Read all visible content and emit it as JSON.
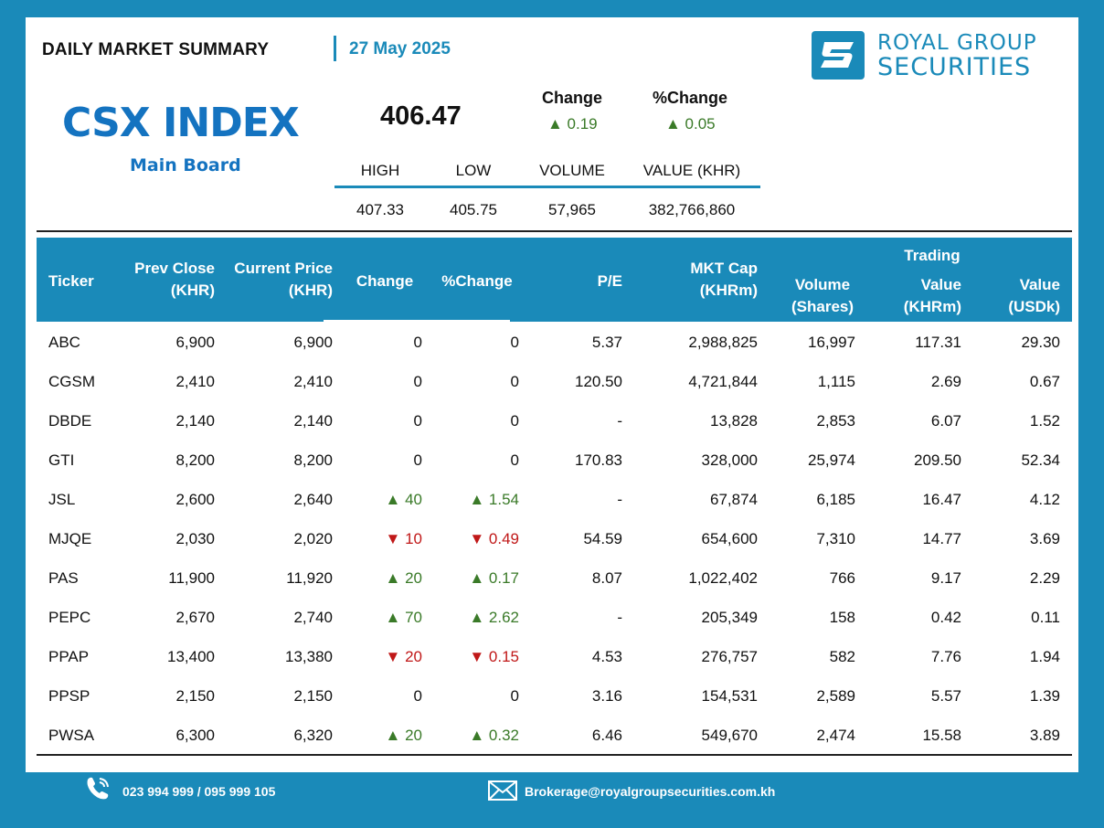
{
  "header": {
    "title": "DAILY MARKET SUMMARY",
    "date": "27 May 2025",
    "logo_line1": "ROYAL GROUP",
    "logo_line2": "SECURITIES",
    "logo_icon": "royal-group-logo-icon"
  },
  "index": {
    "name": "CSX INDEX",
    "board": "Main Board",
    "value": "406.47",
    "change_label": "Change",
    "pct_change_label": "%Change",
    "change": "▲ 0.19",
    "pct_change": "▲ 0.05"
  },
  "stats": {
    "headers": [
      "HIGH",
      "LOW",
      "VOLUME",
      "VALUE (KHR)"
    ],
    "values": [
      "407.33",
      "405.75",
      "57,965",
      "382,766,860"
    ]
  },
  "table": {
    "headers": {
      "ticker": "Ticker",
      "prev_close_1": "Prev Close",
      "prev_close_2": "(KHR)",
      "current_price_1": "Current Price",
      "current_price_2": "(KHR)",
      "change": "Change",
      "pct_change": "%Change",
      "pe": "P/E",
      "mkt_cap_1": "MKT Cap",
      "mkt_cap_2": "(KHRm)",
      "volume_1": "Volume",
      "volume_2": "(Shares)",
      "trading": "Trading",
      "value_khr_1": "Value",
      "value_khr_2": "(KHRm)",
      "value_usd_1": "Value",
      "value_usd_2": "(USDk)"
    },
    "rows": [
      {
        "ticker": "ABC",
        "prev": "6,900",
        "cur": "6,900",
        "chg": "0",
        "pct": "0",
        "dir": "flat",
        "pe": "5.37",
        "cap": "2,988,825",
        "vol": "16,997",
        "vkhr": "117.31",
        "vusd": "29.30"
      },
      {
        "ticker": "CGSM",
        "prev": "2,410",
        "cur": "2,410",
        "chg": "0",
        "pct": "0",
        "dir": "flat",
        "pe": "120.50",
        "cap": "4,721,844",
        "vol": "1,115",
        "vkhr": "2.69",
        "vusd": "0.67"
      },
      {
        "ticker": "DBDE",
        "prev": "2,140",
        "cur": "2,140",
        "chg": "0",
        "pct": "0",
        "dir": "flat",
        "pe": "-",
        "cap": "13,828",
        "vol": "2,853",
        "vkhr": "6.07",
        "vusd": "1.52"
      },
      {
        "ticker": "GTI",
        "prev": "8,200",
        "cur": "8,200",
        "chg": "0",
        "pct": "0",
        "dir": "flat",
        "pe": "170.83",
        "cap": "328,000",
        "vol": "25,974",
        "vkhr": "209.50",
        "vusd": "52.34"
      },
      {
        "ticker": "JSL",
        "prev": "2,600",
        "cur": "2,640",
        "chg": "▲ 40",
        "pct": "▲ 1.54",
        "dir": "up",
        "pe": "-",
        "cap": "67,874",
        "vol": "6,185",
        "vkhr": "16.47",
        "vusd": "4.12"
      },
      {
        "ticker": "MJQE",
        "prev": "2,030",
        "cur": "2,020",
        "chg": "▼ 10",
        "pct": "▼ 0.49",
        "dir": "down",
        "pe": "54.59",
        "cap": "654,600",
        "vol": "7,310",
        "vkhr": "14.77",
        "vusd": "3.69"
      },
      {
        "ticker": "PAS",
        "prev": "11,900",
        "cur": "11,920",
        "chg": "▲ 20",
        "pct": "▲ 0.17",
        "dir": "up",
        "pe": "8.07",
        "cap": "1,022,402",
        "vol": "766",
        "vkhr": "9.17",
        "vusd": "2.29"
      },
      {
        "ticker": "PEPC",
        "prev": "2,670",
        "cur": "2,740",
        "chg": "▲ 70",
        "pct": "▲ 2.62",
        "dir": "up",
        "pe": "-",
        "cap": "205,349",
        "vol": "158",
        "vkhr": "0.42",
        "vusd": "0.11"
      },
      {
        "ticker": "PPAP",
        "prev": "13,400",
        "cur": "13,380",
        "chg": "▼ 20",
        "pct": "▼ 0.15",
        "dir": "down",
        "pe": "4.53",
        "cap": "276,757",
        "vol": "582",
        "vkhr": "7.76",
        "vusd": "1.94"
      },
      {
        "ticker": "PPSP",
        "prev": "2,150",
        "cur": "2,150",
        "chg": "0",
        "pct": "0",
        "dir": "flat",
        "pe": "3.16",
        "cap": "154,531",
        "vol": "2,589",
        "vkhr": "5.57",
        "vusd": "1.39"
      },
      {
        "ticker": "PWSA",
        "prev": "6,300",
        "cur": "6,320",
        "chg": "▲ 20",
        "pct": "▲ 0.32",
        "dir": "up",
        "pe": "6.46",
        "cap": "549,670",
        "vol": "2,474",
        "vkhr": "15.58",
        "vusd": "3.89"
      }
    ]
  },
  "footer": {
    "phone": "023 994 999 / 095 999 105",
    "email": "Brokerage@royalgroupsecurities.com.kh",
    "phone_icon": "phone-icon",
    "mail_icon": "mail-icon"
  },
  "colors": {
    "brand_blue": "#1a8ab9",
    "index_blue": "#1473c0",
    "up_green": "#3a7a28",
    "down_red": "#c01818"
  }
}
